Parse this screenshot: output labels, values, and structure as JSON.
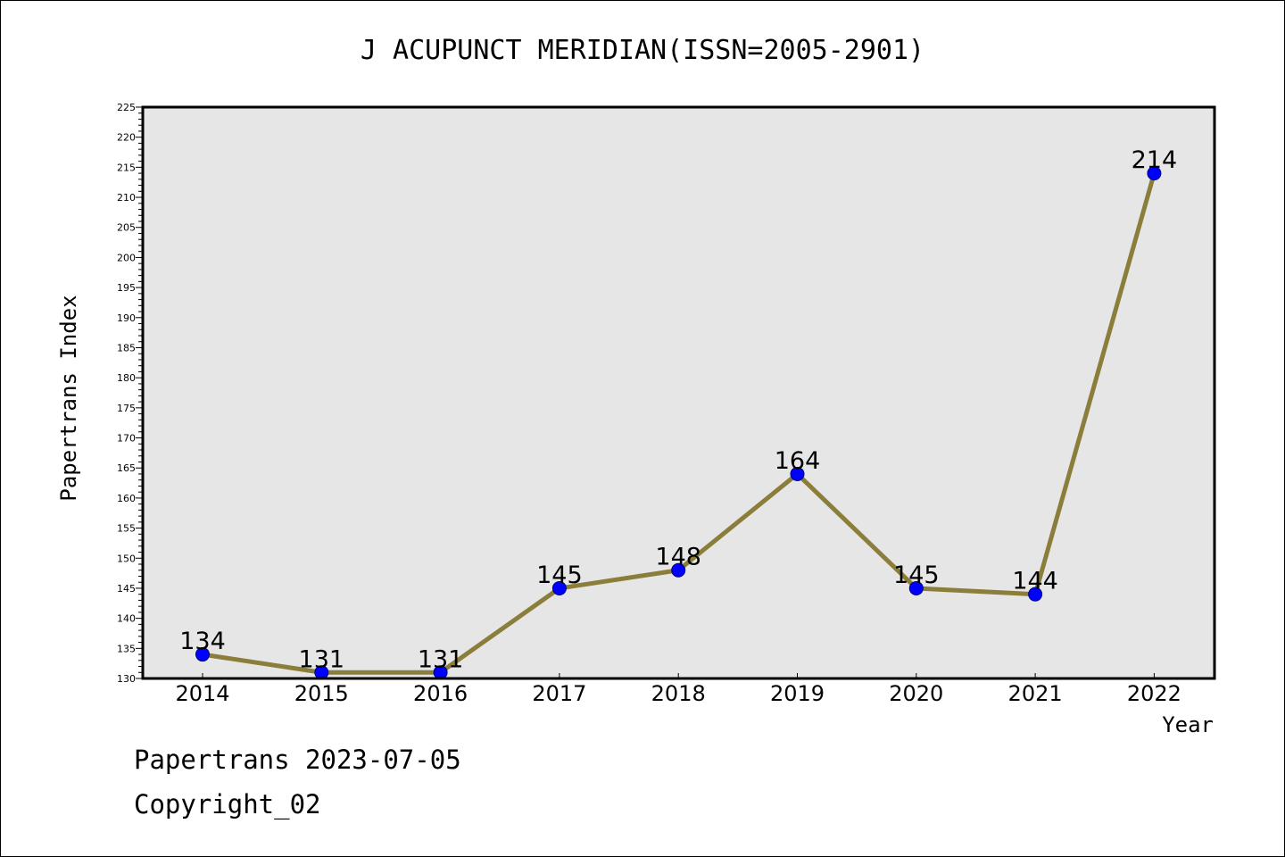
{
  "chart_data": {
    "type": "line",
    "title": "J ACUPUNCT MERIDIAN(ISSN=2005-2901)",
    "xlabel": "Year",
    "ylabel": "Papertrans Index",
    "categories": [
      "2014",
      "2015",
      "2016",
      "2017",
      "2018",
      "2019",
      "2020",
      "2021",
      "2022"
    ],
    "values": [
      134,
      131,
      131,
      145,
      148,
      164,
      145,
      144,
      214
    ],
    "data_labels": [
      "134",
      "131",
      "131",
      "145",
      "148",
      "164",
      "145",
      "144",
      "214"
    ],
    "ylim": [
      130,
      225
    ],
    "y_ticks": [
      "130",
      "135",
      "140",
      "145",
      "150",
      "155",
      "160",
      "165",
      "170",
      "175",
      "180",
      "185",
      "190",
      "195",
      "200",
      "205",
      "210",
      "215",
      "220",
      "225"
    ],
    "grid": false,
    "legend": "none",
    "colors": {
      "line": "#8B7D3A",
      "marker": "#0000FF",
      "marker_edge": "#000080",
      "plot_background": "#E6E6E6"
    }
  },
  "footer": {
    "date_line": "Papertrans 2023-07-05",
    "copyright": "Copyright_02"
  }
}
